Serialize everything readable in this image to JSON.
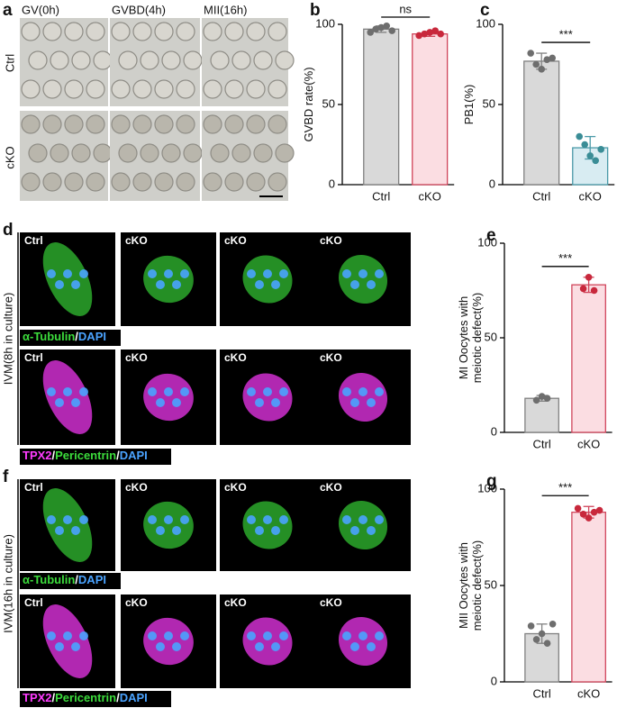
{
  "figure": {
    "panel_letters": [
      "a",
      "b",
      "c",
      "d",
      "e",
      "f",
      "g"
    ],
    "a": {
      "columns": [
        "GV(0h)",
        "GVBD(4h)",
        "MII(16h)"
      ],
      "rows": [
        "Ctrl",
        "cKO"
      ]
    },
    "d": {
      "row_1_labels": [
        "Ctrl",
        "cKO",
        "cKO",
        "cKO"
      ],
      "row_2_labels": [
        "Ctrl",
        "cKO",
        "cKO",
        "cKO"
      ],
      "stain_1": [
        {
          "text": "α-Tubulin",
          "color": "#3cdc3c"
        },
        {
          "text": "/",
          "color": "#ffffff"
        },
        {
          "text": "DAPI",
          "color": "#4aa3ff"
        }
      ],
      "stain_2": [
        {
          "text": "TPX2",
          "color": "#ff3cff"
        },
        {
          "text": "/",
          "color": "#ffffff"
        },
        {
          "text": "Pericentrin",
          "color": "#3cdc3c"
        },
        {
          "text": "/",
          "color": "#ffffff"
        },
        {
          "text": "DAPI",
          "color": "#4aa3ff"
        }
      ],
      "side_label": "IVM(8h in culture)"
    },
    "f": {
      "row_1_labels": [
        "Ctrl",
        "cKO",
        "cKO",
        "cKO"
      ],
      "row_2_labels": [
        "Ctrl",
        "cKO",
        "cKO",
        "cKO"
      ],
      "stain_1": [
        {
          "text": "α-Tubulin",
          "color": "#3cdc3c"
        },
        {
          "text": "/",
          "color": "#ffffff"
        },
        {
          "text": "DAPI",
          "color": "#4aa3ff"
        }
      ],
      "stain_2": [
        {
          "text": "TPX2",
          "color": "#ff3cff"
        },
        {
          "text": "/",
          "color": "#ffffff"
        },
        {
          "text": "Pericentrin",
          "color": "#3cdc3c"
        },
        {
          "text": "/",
          "color": "#ffffff"
        },
        {
          "text": "DAPI",
          "color": "#4aa3ff"
        }
      ],
      "side_label": "IVM(16h in culture)"
    }
  },
  "chart_data": [
    {
      "type": "bar",
      "ylabel": [
        "GVBD rate(%)"
      ],
      "categories": [
        "Ctrl",
        "cKO"
      ],
      "values": [
        97,
        94
      ],
      "errors": [
        2,
        1.5
      ],
      "points": [
        [
          95,
          97,
          98,
          99,
          96
        ],
        [
          93,
          94,
          95,
          96,
          94
        ]
      ],
      "bar_colors": [
        "#d9d9d9",
        "#fbdde2"
      ],
      "edge_colors": [
        "#808080",
        "#d0455b"
      ],
      "point_colors": [
        "#6e6e6e",
        "#c8283c"
      ],
      "ylim": [
        0,
        100
      ],
      "yticks": [
        0,
        50,
        100
      ],
      "annotation": "ns"
    },
    {
      "type": "bar",
      "ylabel": [
        "PB1(%)"
      ],
      "categories": [
        "Ctrl",
        "cKO"
      ],
      "values": [
        77,
        23
      ],
      "errors": [
        5,
        7
      ],
      "points": [
        [
          82,
          75,
          72,
          78,
          79
        ],
        [
          30,
          25,
          18,
          15,
          22
        ]
      ],
      "bar_colors": [
        "#d9d9d9",
        "#d8ecf2"
      ],
      "edge_colors": [
        "#808080",
        "#4a9aa8"
      ],
      "point_colors": [
        "#6e6e6e",
        "#3a8d96"
      ],
      "ylim": [
        0,
        100
      ],
      "yticks": [
        0,
        50,
        100
      ],
      "annotation": "***"
    },
    {
      "type": "bar",
      "ylabel": [
        "MI Oocytes with",
        "meiotic defect(%)"
      ],
      "categories": [
        "Ctrl",
        "cKO"
      ],
      "values": [
        18,
        78
      ],
      "errors": [
        1.5,
        4
      ],
      "points": [
        [
          17,
          19,
          18
        ],
        [
          76,
          82,
          75
        ]
      ],
      "bar_colors": [
        "#d9d9d9",
        "#fbdde2"
      ],
      "edge_colors": [
        "#808080",
        "#d0455b"
      ],
      "point_colors": [
        "#6e6e6e",
        "#c8283c"
      ],
      "ylim": [
        0,
        100
      ],
      "yticks": [
        0,
        50,
        100
      ],
      "annotation": "***"
    },
    {
      "type": "bar",
      "ylabel": [
        "MII Oocytes with",
        "meiotic defect(%)"
      ],
      "categories": [
        "Ctrl",
        "cKO"
      ],
      "values": [
        25,
        88
      ],
      "errors": [
        5,
        3
      ],
      "points": [
        [
          29,
          22,
          25,
          20,
          30
        ],
        [
          90,
          87,
          85,
          88,
          89
        ]
      ],
      "bar_colors": [
        "#d9d9d9",
        "#fbdde2"
      ],
      "edge_colors": [
        "#808080",
        "#d0455b"
      ],
      "point_colors": [
        "#6e6e6e",
        "#c8283c"
      ],
      "ylim": [
        0,
        100
      ],
      "yticks": [
        0,
        50,
        100
      ],
      "annotation": "***"
    }
  ]
}
